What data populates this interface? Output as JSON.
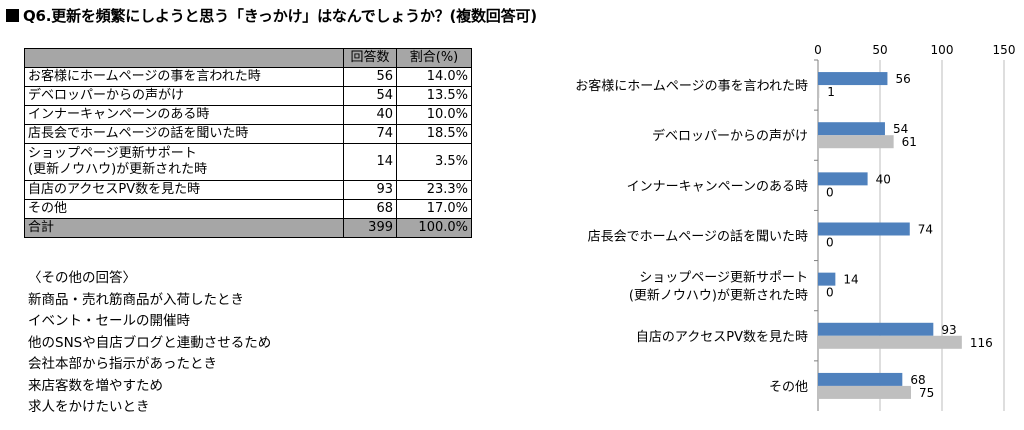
{
  "title": "Q6.更新を頻繁にしようと思う「きっかけ」はなんでしょうか？(複数回答可)",
  "table": {
    "headers": [
      "",
      "回答数",
      "割合(%)"
    ],
    "rows": [
      {
        "label": "お客様にホームページの事を言われた時",
        "count": "56",
        "pct": "14.0%"
      },
      {
        "label": "デベロッパーからの声がけ",
        "count": "54",
        "pct": "13.5%"
      },
      {
        "label": "インナーキャンペーンのある時",
        "count": "40",
        "pct": "10.0%"
      },
      {
        "label": "店長会でホームページの話を聞いた時",
        "count": "74",
        "pct": "18.5%"
      },
      {
        "label": "ショップページ更新サポート\n(更新ノウハウ)が更新された時",
        "count": "14",
        "pct": "3.5%"
      },
      {
        "label": "自店のアクセスPV数を見た時",
        "count": "93",
        "pct": "23.3%"
      },
      {
        "label": "その他",
        "count": "68",
        "pct": "17.0%"
      }
    ],
    "total": {
      "label": "合計",
      "count": "399",
      "pct": "100.0%"
    }
  },
  "other_answers": {
    "heading": "〈その他の回答〉",
    "items": [
      "新商品・売れ筋商品が入荷したとき",
      "イベント・セールの開催時",
      "他のSNSや自店ブログと連動させるため",
      "会社本部から指示があったとき",
      "来店客数を増やすため",
      "求人をかけたいとき"
    ]
  },
  "chart_data": {
    "type": "bar",
    "orientation": "horizontal",
    "categories": [
      "お客様にホームページの事を言われた時",
      "デベロッパーからの声がけ",
      "インナーキャンペーンのある時",
      "店長会でホームページの話を聞いた時",
      "ショップページ更新サポート\n(更新ノウハウ)が更新された時",
      "自店のアクセスPV数を見た時",
      "その他"
    ],
    "series": [
      {
        "values": [
          56,
          54,
          40,
          74,
          14,
          93,
          68
        ],
        "color": "#4f81bd"
      },
      {
        "values": [
          1,
          61,
          0,
          0,
          0,
          116,
          75
        ],
        "color": "#bfbfbf"
      }
    ],
    "xlim": [
      0,
      150
    ],
    "xticks": [
      0,
      50,
      100,
      150
    ],
    "gridlines": true,
    "axis_position": "top"
  }
}
